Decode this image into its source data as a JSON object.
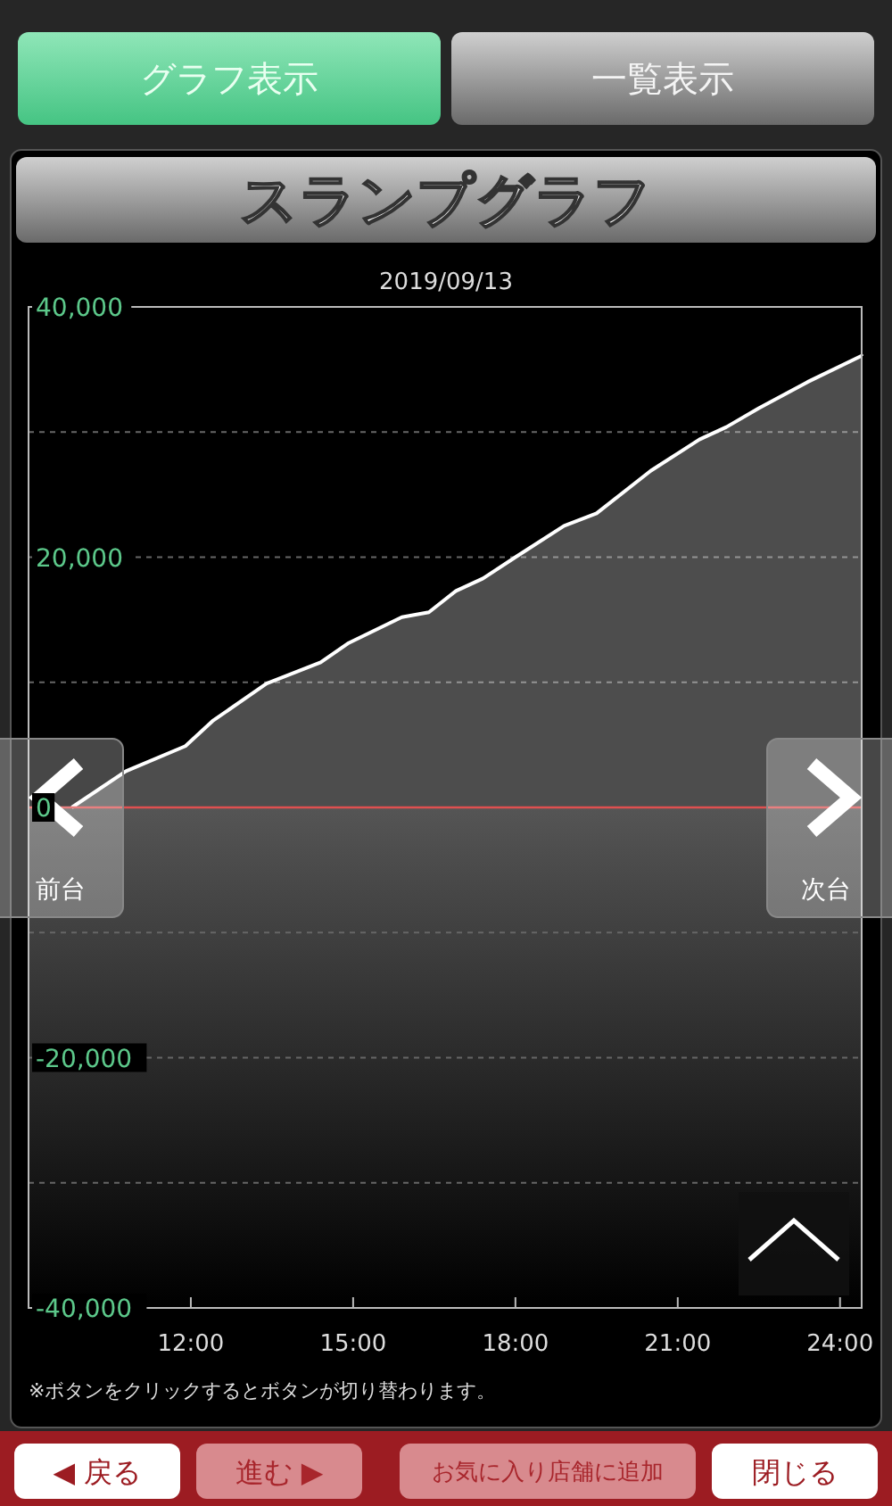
{
  "chart_data": {
    "type": "area",
    "title": "スランプグラフ",
    "subtitle": "2019/09/13",
    "x": [
      9.8,
      10.8,
      11.9,
      12.4,
      13.4,
      14.4,
      14.9,
      15.9,
      16.4,
      16.9,
      17.4,
      18,
      18.9,
      19.5,
      20.5,
      21.4,
      21.9,
      22.5,
      23.4,
      24.4
    ],
    "series": [
      {
        "color": "#ffffff",
        "values": [
          0,
          2900,
          4900,
          6900,
          9900,
          11600,
          13100,
          15200,
          15600,
          17300,
          18300,
          20000,
          22500,
          23500,
          26900,
          29400,
          30400,
          31900,
          34000,
          36100
        ]
      }
    ],
    "xlim": [
      9,
      24.4
    ],
    "xticks": [
      {
        "value": 12,
        "label": "12:00"
      },
      {
        "value": 15,
        "label": "15:00"
      },
      {
        "value": 18,
        "label": "18:00"
      },
      {
        "value": 21,
        "label": "21:00"
      },
      {
        "value": 24,
        "label": "24:00"
      }
    ],
    "ylim": [
      -40000,
      40000
    ],
    "yticks": [
      {
        "value": -40000,
        "label": "-40,000"
      },
      {
        "value": -30000,
        "label": null
      },
      {
        "value": -20000,
        "label": "-20,000"
      },
      {
        "value": -10000,
        "label": null
      },
      {
        "value": 0,
        "label": "0"
      },
      {
        "value": 10000,
        "label": null
      },
      {
        "value": 20000,
        "label": "20,000"
      },
      {
        "value": 30000,
        "label": null
      },
      {
        "value": 40000,
        "label": "40,000"
      }
    ],
    "grid": "y",
    "ref_lines": [
      {
        "axis": "y",
        "value": 0,
        "color": "#e05050"
      }
    ],
    "bands": [
      {
        "axis": "y",
        "from": -40000,
        "to": 0,
        "color": "#555555"
      }
    ],
    "annotations": [
      "※ボタンをクリックするとボタンが切り替わります。",
      "グラフ表示",
      "一覧表示",
      "前台",
      "次台",
      "◀ 戻る",
      "進む ▶",
      "お気に入り店舗に追加",
      "閉じる"
    ]
  }
}
